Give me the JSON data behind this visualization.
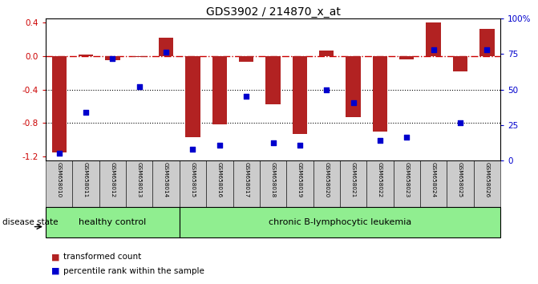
{
  "title": "GDS3902 / 214870_x_at",
  "samples": [
    "GSM658010",
    "GSM658011",
    "GSM658012",
    "GSM658013",
    "GSM658014",
    "GSM658015",
    "GSM658016",
    "GSM658017",
    "GSM658018",
    "GSM658019",
    "GSM658020",
    "GSM658021",
    "GSM658022",
    "GSM658023",
    "GSM658024",
    "GSM658025",
    "GSM658026"
  ],
  "bar_values": [
    -1.15,
    0.02,
    -0.05,
    -0.01,
    0.22,
    -0.97,
    -0.82,
    -0.07,
    -0.58,
    -0.93,
    0.07,
    -0.73,
    -0.9,
    -0.04,
    0.4,
    -0.18,
    0.33
  ],
  "dot_values": [
    2,
    33,
    73,
    52,
    78,
    5,
    8,
    45,
    10,
    8,
    50,
    40,
    12,
    14,
    80,
    25,
    80
  ],
  "healthy_count": 5,
  "group1_label": "healthy control",
  "group2_label": "chronic B-lymphocytic leukemia",
  "ylim": [
    -1.25,
    0.45
  ],
  "yticks_left": [
    0.4,
    0.0,
    -0.4,
    -0.8,
    -1.2
  ],
  "yticks_right": [
    100,
    75,
    50,
    25,
    0
  ],
  "bar_color": "#B22222",
  "dot_color": "#0000CD",
  "zero_line_color": "#CC0000",
  "background_color": "#FFFFFF",
  "label_bar": "transformed count",
  "label_dot": "percentile rank within the sample",
  "healthy_bg": "#90EE90",
  "leukemia_bg": "#90EE90",
  "xticklabel_bg": "#CCCCCC",
  "bar_width": 0.55,
  "dot_size": 25
}
